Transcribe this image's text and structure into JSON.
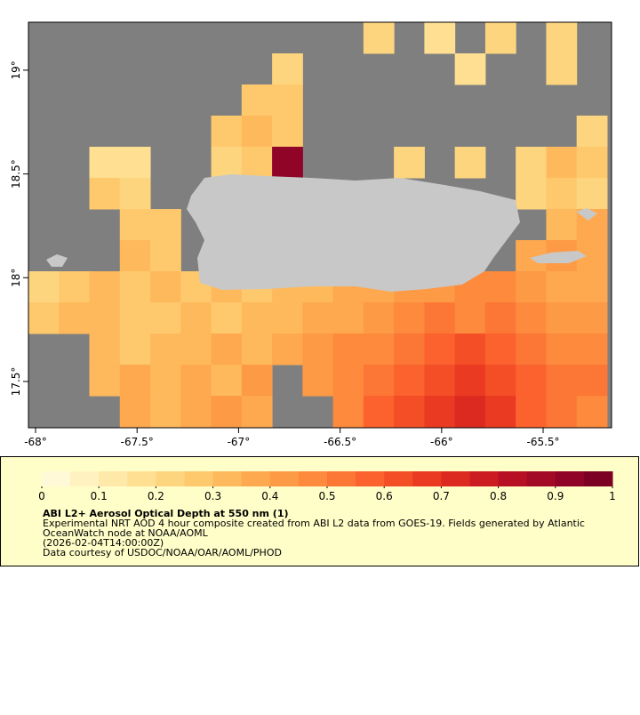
{
  "chart_data": {
    "type": "map",
    "xlim": [
      -68.035,
      -65.163
    ],
    "ylim": [
      17.277,
      19.231
    ],
    "xticks": [
      {
        "value": -68,
        "label": "-68°"
      },
      {
        "value": -67.5,
        "label": "-67.5°"
      },
      {
        "value": -67,
        "label": "-67°"
      },
      {
        "value": -66.5,
        "label": "-66.5°"
      },
      {
        "value": -66,
        "label": "-66°"
      },
      {
        "value": -65.5,
        "label": "-65.5°"
      }
    ],
    "yticks": [
      {
        "value": 17.5,
        "label": "17.5°"
      },
      {
        "value": 18,
        "label": "18°"
      },
      {
        "value": 18.5,
        "label": "18.5°"
      },
      {
        "value": 19,
        "label": "19°"
      }
    ],
    "grid_lon0": -68.035,
    "grid_lat0": 19.231,
    "grid_step": 0.15,
    "aod": [
      [
        null,
        null,
        null,
        null,
        null,
        null,
        null,
        null,
        null,
        null,
        null,
        0.2,
        null,
        0.15,
        null,
        0.2,
        null,
        0.2,
        null
      ],
      [
        null,
        null,
        null,
        null,
        null,
        null,
        null,
        null,
        0.2,
        null,
        null,
        null,
        null,
        null,
        0.15,
        null,
        null,
        0.2,
        null
      ],
      [
        null,
        null,
        null,
        null,
        null,
        null,
        null,
        0.25,
        0.25,
        null,
        null,
        null,
        null,
        null,
        null,
        null,
        null,
        null,
        null
      ],
      [
        null,
        null,
        null,
        null,
        null,
        null,
        0.25,
        0.3,
        0.25,
        null,
        null,
        null,
        null,
        null,
        null,
        null,
        null,
        null,
        0.2
      ],
      [
        null,
        null,
        0.15,
        0.15,
        null,
        null,
        0.2,
        0.25,
        0.9,
        null,
        null,
        null,
        0.2,
        null,
        0.2,
        null,
        0.2,
        0.3,
        0.25
      ],
      [
        null,
        null,
        0.25,
        0.2,
        null,
        null,
        null,
        null,
        null,
        null,
        null,
        null,
        null,
        null,
        null,
        null,
        0.2,
        0.25,
        0.2
      ],
      [
        null,
        null,
        null,
        0.25,
        0.25,
        null,
        null,
        null,
        null,
        null,
        null,
        null,
        null,
        null,
        null,
        null,
        null,
        0.3,
        0.35
      ],
      [
        null,
        null,
        null,
        0.3,
        0.25,
        null,
        null,
        null,
        null,
        null,
        null,
        null,
        null,
        null,
        null,
        null,
        0.35,
        0.4,
        0.35
      ],
      [
        0.2,
        0.25,
        0.3,
        0.25,
        0.3,
        0.25,
        0.3,
        0.25,
        0.3,
        0.3,
        0.35,
        0.35,
        0.4,
        0.4,
        0.45,
        0.45,
        0.4,
        0.35,
        0.35
      ],
      [
        0.25,
        0.3,
        0.3,
        0.25,
        0.25,
        0.3,
        0.25,
        0.3,
        0.3,
        0.35,
        0.35,
        0.4,
        0.45,
        0.5,
        0.45,
        0.5,
        0.45,
        0.4,
        0.4
      ],
      [
        null,
        null,
        0.3,
        0.25,
        0.3,
        0.3,
        0.35,
        0.3,
        0.35,
        0.4,
        0.45,
        0.45,
        0.5,
        0.55,
        0.6,
        0.55,
        0.5,
        0.45,
        0.45
      ],
      [
        null,
        null,
        0.3,
        0.35,
        0.3,
        0.35,
        0.3,
        0.4,
        null,
        0.4,
        0.45,
        0.5,
        0.55,
        0.6,
        0.65,
        0.6,
        0.55,
        0.5,
        0.5
      ],
      [
        null,
        null,
        null,
        0.35,
        0.3,
        0.35,
        0.4,
        0.35,
        null,
        null,
        0.45,
        0.55,
        0.6,
        0.65,
        0.7,
        0.65,
        0.55,
        0.5,
        0.45
      ]
    ],
    "colorbar_lim": [
      0,
      1
    ],
    "colorbar_ticks": [
      0,
      0.1,
      0.2,
      0.3,
      0.4,
      0.5,
      0.6,
      0.7,
      0.8,
      0.9,
      1
    ],
    "colors": [
      "#fff9d8",
      "#fff2c0",
      "#ffe9a8",
      "#ffdf92",
      "#fed57f",
      "#fec96d",
      "#feb95c",
      "#fea94f",
      "#fd9a45",
      "#fd8a3d",
      "#fc7635",
      "#fb622e",
      "#f44e27",
      "#ea3a22",
      "#dc2a20",
      "#cc1c22",
      "#b71024",
      "#a30a26",
      "#8f0427",
      "#7c0024"
    ],
    "ocean_color": "#7f7f7f",
    "land_color": "#c8c8c8"
  },
  "legend": {
    "title": "ABI L2+ Aerosol Optical Depth at 550 nm (1)",
    "lines": [
      "Experimental NRT AOD 4 hour composite created from ABI L2 data from GOES-19. Fields generated by Atlantic",
      "OceanWatch node at NOAA/AOML",
      "(2026-02-04T14:00:00Z)",
      "Data courtesy of USDOC/NOAA/OAR/AOML/PHOD"
    ]
  }
}
